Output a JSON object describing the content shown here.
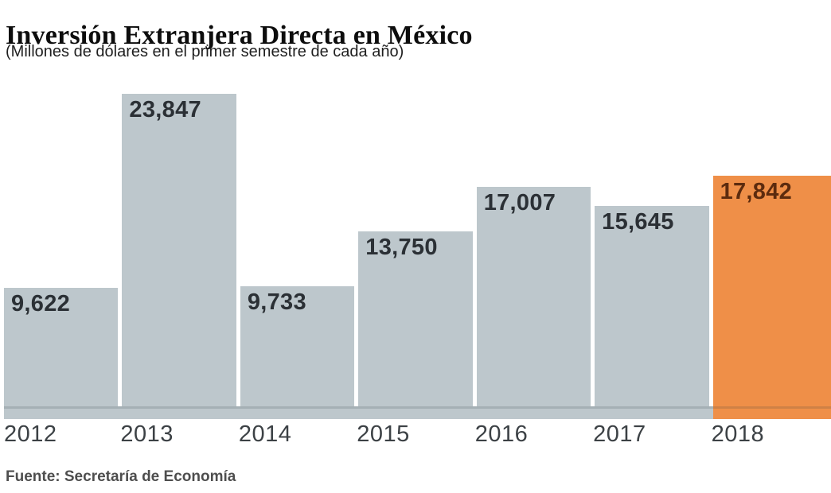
{
  "chart_data": {
    "type": "bar",
    "title": "Inversión Extranjera Directa en México",
    "subtitle": "(Millones de dólares en el primer semestre de cada año)",
    "categories": [
      "2012",
      "2013",
      "2014",
      "2015",
      "2016",
      "2017",
      "2018"
    ],
    "values": [
      9622,
      23847,
      9733,
      13750,
      17007,
      15645,
      17842
    ],
    "value_labels": [
      "9,622",
      "23,847",
      "9,733",
      "13,750",
      "17,007",
      "15,645",
      "17,842"
    ],
    "xlabel": "",
    "ylabel": "",
    "ylim": [
      0,
      23847
    ],
    "grid": false,
    "legend": "none",
    "value_label_position": "inside-top-left",
    "highlight_index": 6,
    "bar_color": "#bdc7cc",
    "highlight_color": "#ef8f48",
    "label_color": "#2b3035",
    "highlight_label_color": "#5c2b0e",
    "axis_band_color": "#bdc7cc"
  },
  "source": {
    "text": "Fuente: Secretaría de Economía"
  }
}
